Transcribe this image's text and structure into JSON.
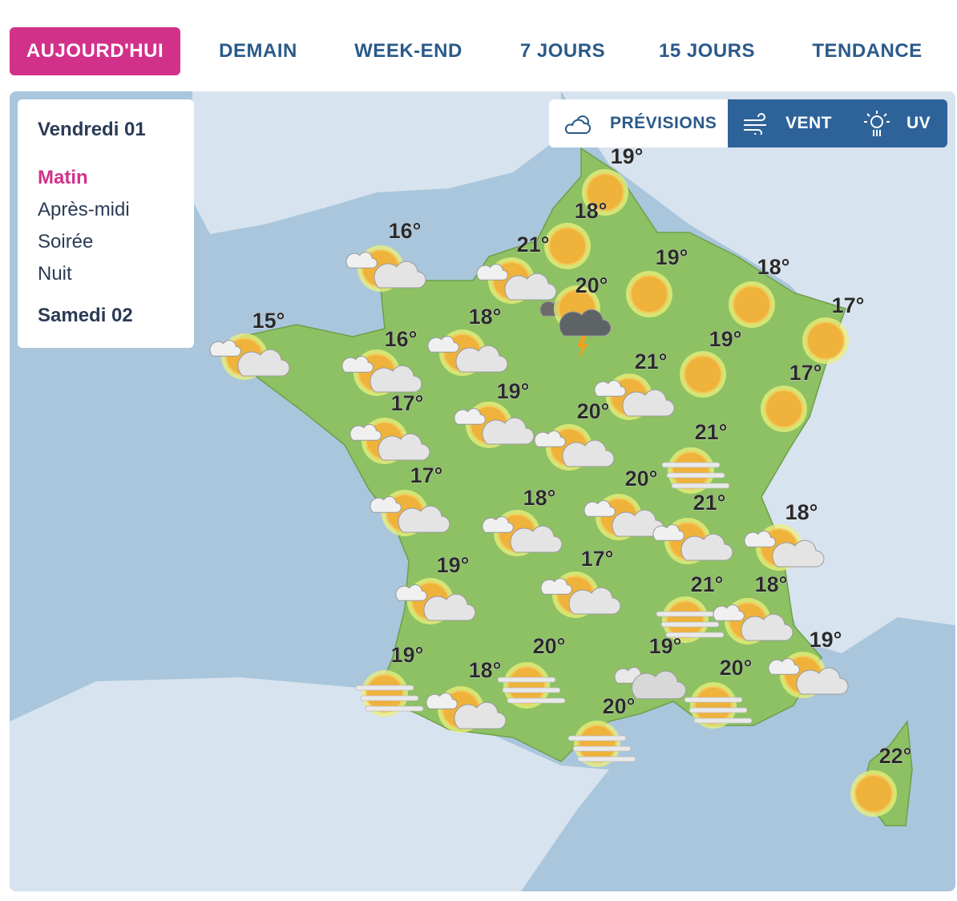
{
  "tabs": [
    "AUJOURD'HUI",
    "DEMAIN",
    "WEEK-END",
    "7 JOURS",
    "15 JOURS",
    "TENDANCE"
  ],
  "day_panel": {
    "day": "Vendredi 01",
    "periods": [
      "Matin",
      "Après-midi",
      "Soirée",
      "Nuit"
    ],
    "next_day": "Samedi 02"
  },
  "layers": [
    "PRÉVISIONS",
    "VENT",
    "UV"
  ],
  "temperatures": [
    "19°",
    "18°",
    "21°",
    "16°",
    "15°",
    "19°",
    "18°",
    "17°",
    "20°",
    "18°",
    "16°",
    "19°",
    "21°",
    "17°",
    "19°",
    "17°",
    "20°",
    "21°",
    "20°",
    "17°",
    "18°",
    "21°",
    "18°",
    "17°",
    "19°",
    "21°",
    "18°",
    "19°",
    "19°",
    "20°",
    "19°",
    "18°",
    "20°",
    "20°",
    "22°"
  ]
}
